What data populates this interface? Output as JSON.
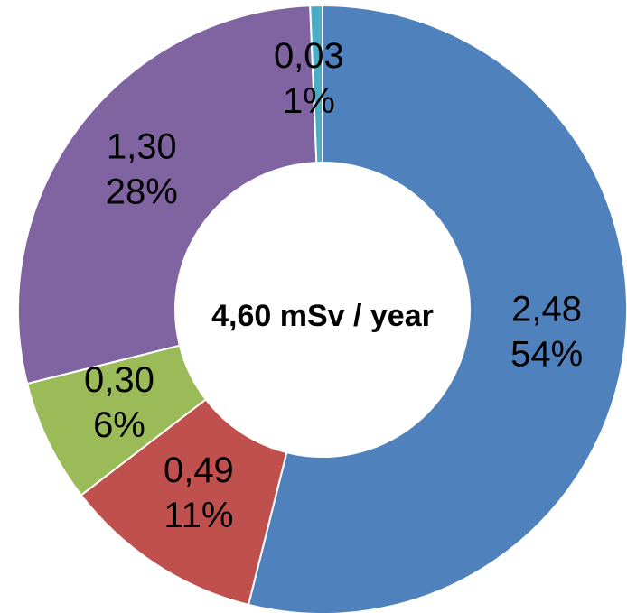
{
  "chart_data": {
    "type": "pie",
    "donut": true,
    "center_label": "4,60 mSv / year",
    "slices": [
      {
        "value": 2.48,
        "value_label": "2,48",
        "percent_label": "54%",
        "color": "#4f81bd"
      },
      {
        "value": 0.49,
        "value_label": "0,49",
        "percent_label": "11%",
        "color": "#c0504d"
      },
      {
        "value": 0.3,
        "value_label": "0,30",
        "percent_label": "6%",
        "color": "#9bbb59"
      },
      {
        "value": 1.3,
        "value_label": "1,30",
        "percent_label": "28%",
        "color": "#8064a2"
      },
      {
        "value": 0.03,
        "value_label": "0,03",
        "percent_label": "1%",
        "color": "#4bacc6"
      }
    ],
    "legend": "none"
  }
}
